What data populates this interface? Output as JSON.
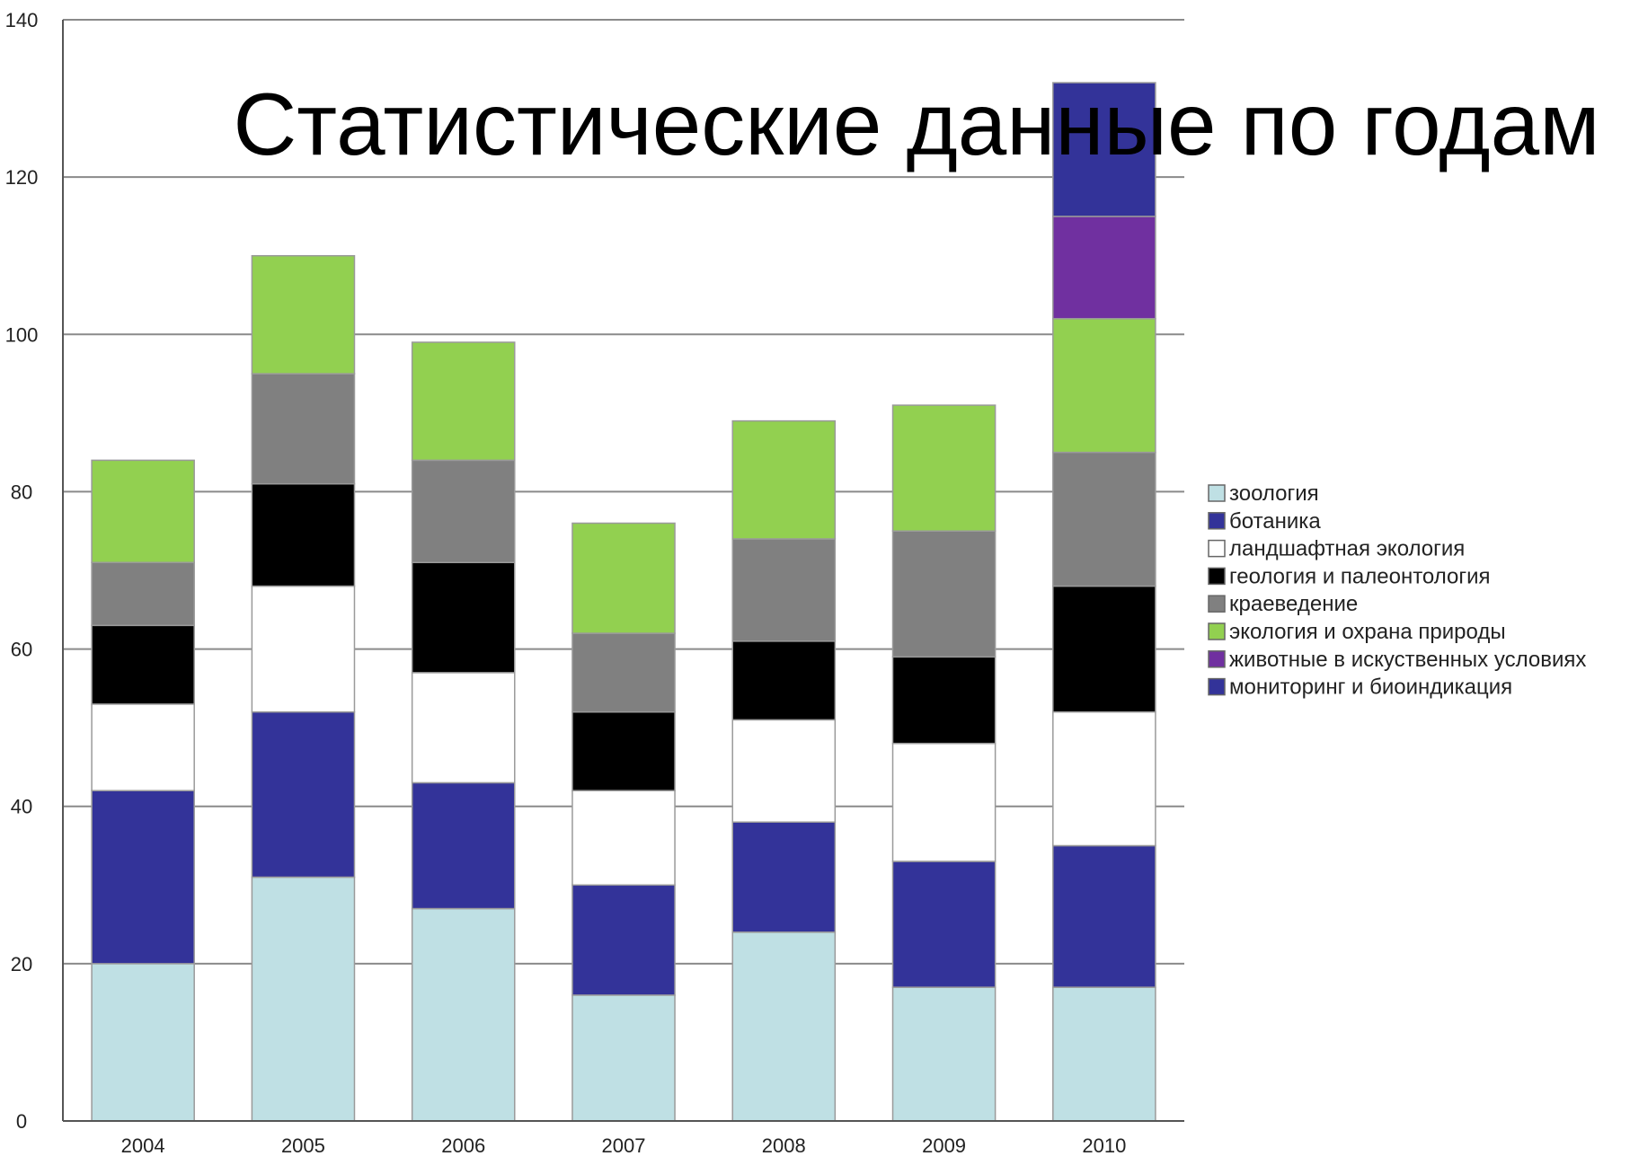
{
  "chart_data": {
    "type": "bar",
    "stacked": true,
    "title": "Статистические данные по годам",
    "categories": [
      "2004",
      "2005",
      "2006",
      "2007",
      "2008",
      "2009",
      "2010"
    ],
    "ylim": [
      0,
      140
    ],
    "yticks": [
      0,
      20,
      40,
      60,
      80,
      100,
      120,
      140
    ],
    "grid": true,
    "legend_position": "right",
    "series": [
      {
        "name": "зоология",
        "color": "#bfe0e4",
        "values": [
          20,
          31,
          27,
          16,
          24,
          17,
          17
        ]
      },
      {
        "name": "ботаника",
        "color": "#333399",
        "values": [
          22,
          21,
          16,
          14,
          14,
          16,
          18
        ]
      },
      {
        "name": "ландшафтная экология",
        "color": "#ffffff",
        "values": [
          11,
          16,
          14,
          12,
          13,
          15,
          17
        ]
      },
      {
        "name": "геология и палеонтология",
        "color": "#000000",
        "values": [
          10,
          13,
          14,
          10,
          10,
          11,
          16
        ]
      },
      {
        "name": "краеведение",
        "color": "#808080",
        "values": [
          8,
          14,
          13,
          10,
          13,
          16,
          17
        ]
      },
      {
        "name": "экология и охрана природы",
        "color": "#92d050",
        "values": [
          13,
          15,
          15,
          14,
          15,
          16,
          17
        ]
      },
      {
        "name": "животные в искуственных условиях",
        "color": "#7030a0",
        "values": [
          0,
          0,
          0,
          0,
          0,
          0,
          13
        ]
      },
      {
        "name": "мониторинг и биоиндикация",
        "color": "#333399",
        "values": [
          0,
          0,
          0,
          0,
          0,
          0,
          17
        ]
      }
    ]
  }
}
